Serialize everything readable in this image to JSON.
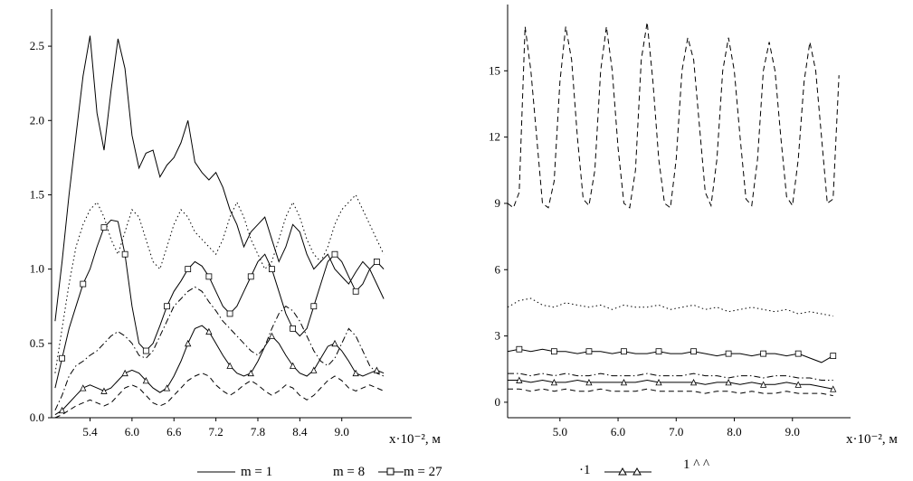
{
  "chart_data": [
    {
      "type": "line",
      "xlabel": "x·10⁻², м",
      "ylabel": "",
      "xticks": [
        "5.4",
        "6.0",
        "6.6",
        "7.2",
        "7.8",
        "8.4",
        "9.0"
      ],
      "yticks": [
        "0.0",
        "0.5",
        "1.0",
        "1.5",
        "2.0",
        "2.5"
      ],
      "xlim": [
        4.85,
        10.0
      ],
      "ylim": [
        0.0,
        2.75
      ],
      "series": [
        {
          "style": "solid",
          "x": [
            4.9,
            5.0,
            5.1,
            5.2,
            5.3,
            5.4,
            5.5,
            5.6,
            5.7,
            5.8,
            5.9,
            6.0,
            6.1,
            6.2,
            6.3,
            6.4,
            6.5,
            6.6,
            6.7,
            6.8,
            6.9,
            7.0,
            7.1,
            7.2,
            7.3,
            7.4,
            7.5,
            7.6,
            7.7,
            7.8,
            7.9,
            8.0,
            8.1,
            8.2,
            8.3,
            8.4,
            8.5,
            8.6,
            8.7,
            8.8,
            8.9,
            9.0,
            9.1,
            9.2,
            9.3,
            9.4,
            9.5,
            9.6
          ],
          "y": [
            0.65,
            1.05,
            1.5,
            1.9,
            2.3,
            2.57,
            2.05,
            1.8,
            2.2,
            2.55,
            2.35,
            1.9,
            1.68,
            1.78,
            1.8,
            1.62,
            1.7,
            1.75,
            1.85,
            2.0,
            1.72,
            1.65,
            1.6,
            1.65,
            1.55,
            1.4,
            1.3,
            1.15,
            1.25,
            1.3,
            1.35,
            1.2,
            1.05,
            1.15,
            1.3,
            1.25,
            1.1,
            1.0,
            1.05,
            1.1,
            1.0,
            0.95,
            0.9,
            0.98,
            1.05,
            1.0,
            0.9,
            0.8
          ]
        },
        {
          "style": "dotted",
          "x": [
            4.9,
            5.0,
            5.1,
            5.2,
            5.3,
            5.4,
            5.5,
            5.6,
            5.7,
            5.8,
            5.9,
            6.0,
            6.1,
            6.2,
            6.3,
            6.4,
            6.5,
            6.6,
            6.7,
            6.8,
            6.9,
            7.0,
            7.1,
            7.2,
            7.3,
            7.4,
            7.5,
            7.6,
            7.7,
            7.8,
            7.9,
            8.0,
            8.1,
            8.2,
            8.3,
            8.4,
            8.5,
            8.6,
            8.7,
            8.8,
            8.9,
            9.0,
            9.1,
            9.2,
            9.3,
            9.4,
            9.5,
            9.6
          ],
          "y": [
            0.3,
            0.6,
            0.9,
            1.15,
            1.3,
            1.4,
            1.45,
            1.35,
            1.2,
            1.1,
            1.25,
            1.4,
            1.35,
            1.2,
            1.05,
            1.0,
            1.15,
            1.3,
            1.4,
            1.35,
            1.25,
            1.2,
            1.15,
            1.1,
            1.2,
            1.35,
            1.45,
            1.35,
            1.2,
            1.1,
            1.0,
            1.05,
            1.2,
            1.35,
            1.45,
            1.35,
            1.2,
            1.1,
            1.05,
            1.15,
            1.3,
            1.4,
            1.45,
            1.5,
            1.4,
            1.3,
            1.2,
            1.1
          ]
        },
        {
          "style": "square-marker",
          "x": [
            4.9,
            5.0,
            5.1,
            5.2,
            5.3,
            5.4,
            5.5,
            5.6,
            5.7,
            5.8,
            5.9,
            6.0,
            6.1,
            6.2,
            6.3,
            6.4,
            6.5,
            6.6,
            6.7,
            6.8,
            6.9,
            7.0,
            7.1,
            7.2,
            7.3,
            7.4,
            7.5,
            7.6,
            7.7,
            7.8,
            7.9,
            8.0,
            8.1,
            8.2,
            8.3,
            8.4,
            8.5,
            8.6,
            8.7,
            8.8,
            8.9,
            9.0,
            9.1,
            9.2,
            9.3,
            9.4,
            9.5,
            9.6
          ],
          "y": [
            0.2,
            0.4,
            0.6,
            0.75,
            0.9,
            1.0,
            1.15,
            1.28,
            1.33,
            1.32,
            1.1,
            0.75,
            0.5,
            0.45,
            0.5,
            0.62,
            0.75,
            0.85,
            0.92,
            1.0,
            1.05,
            1.02,
            0.95,
            0.85,
            0.75,
            0.7,
            0.75,
            0.85,
            0.95,
            1.05,
            1.1,
            1.0,
            0.85,
            0.7,
            0.6,
            0.55,
            0.6,
            0.75,
            0.9,
            1.05,
            1.1,
            1.05,
            0.95,
            0.85,
            0.9,
            1.0,
            1.05,
            1.0
          ]
        },
        {
          "style": "dash-dot",
          "x": [
            4.9,
            5.0,
            5.1,
            5.2,
            5.3,
            5.4,
            5.5,
            5.6,
            5.7,
            5.8,
            5.9,
            6.0,
            6.1,
            6.2,
            6.3,
            6.4,
            6.5,
            6.6,
            6.7,
            6.8,
            6.9,
            7.0,
            7.1,
            7.2,
            7.3,
            7.4,
            7.5,
            7.6,
            7.7,
            7.8,
            7.9,
            8.0,
            8.1,
            8.2,
            8.3,
            8.4,
            8.5,
            8.6,
            8.7,
            8.8,
            8.9,
            9.0,
            9.1,
            9.2,
            9.3,
            9.4,
            9.5,
            9.6
          ],
          "y": [
            0.05,
            0.15,
            0.28,
            0.35,
            0.38,
            0.42,
            0.45,
            0.5,
            0.55,
            0.58,
            0.55,
            0.5,
            0.42,
            0.4,
            0.45,
            0.55,
            0.65,
            0.75,
            0.8,
            0.85,
            0.88,
            0.85,
            0.78,
            0.72,
            0.65,
            0.6,
            0.55,
            0.5,
            0.45,
            0.42,
            0.48,
            0.6,
            0.7,
            0.75,
            0.72,
            0.65,
            0.55,
            0.45,
            0.38,
            0.35,
            0.4,
            0.5,
            0.6,
            0.55,
            0.45,
            0.35,
            0.3,
            0.28
          ]
        },
        {
          "style": "triangle-marker",
          "x": [
            4.9,
            5.0,
            5.1,
            5.2,
            5.3,
            5.4,
            5.5,
            5.6,
            5.7,
            5.8,
            5.9,
            6.0,
            6.1,
            6.2,
            6.3,
            6.4,
            6.5,
            6.6,
            6.7,
            6.8,
            6.9,
            7.0,
            7.1,
            7.2,
            7.3,
            7.4,
            7.5,
            7.6,
            7.7,
            7.8,
            7.9,
            8.0,
            8.1,
            8.2,
            8.3,
            8.4,
            8.5,
            8.6,
            8.7,
            8.8,
            8.9,
            9.0,
            9.1,
            9.2,
            9.3,
            9.4,
            9.5,
            9.6
          ],
          "y": [
            0.02,
            0.05,
            0.1,
            0.15,
            0.2,
            0.22,
            0.2,
            0.18,
            0.2,
            0.25,
            0.3,
            0.32,
            0.3,
            0.25,
            0.2,
            0.17,
            0.2,
            0.28,
            0.38,
            0.5,
            0.6,
            0.62,
            0.58,
            0.5,
            0.42,
            0.35,
            0.3,
            0.28,
            0.3,
            0.38,
            0.48,
            0.55,
            0.5,
            0.42,
            0.35,
            0.3,
            0.28,
            0.32,
            0.4,
            0.48,
            0.5,
            0.45,
            0.38,
            0.3,
            0.28,
            0.3,
            0.32,
            0.3
          ]
        },
        {
          "style": "dashed",
          "x": [
            4.9,
            5.0,
            5.1,
            5.2,
            5.3,
            5.4,
            5.5,
            5.6,
            5.7,
            5.8,
            5.9,
            6.0,
            6.1,
            6.2,
            6.3,
            6.4,
            6.5,
            6.6,
            6.7,
            6.8,
            6.9,
            7.0,
            7.1,
            7.2,
            7.3,
            7.4,
            7.5,
            7.6,
            7.7,
            7.8,
            7.9,
            8.0,
            8.1,
            8.2,
            8.3,
            8.4,
            8.5,
            8.6,
            8.7,
            8.8,
            8.9,
            9.0,
            9.1,
            9.2,
            9.3,
            9.4,
            9.5,
            9.6
          ],
          "y": [
            0.0,
            0.02,
            0.05,
            0.08,
            0.1,
            0.12,
            0.1,
            0.08,
            0.1,
            0.15,
            0.2,
            0.22,
            0.2,
            0.15,
            0.1,
            0.08,
            0.1,
            0.15,
            0.2,
            0.25,
            0.28,
            0.3,
            0.28,
            0.22,
            0.18,
            0.15,
            0.18,
            0.22,
            0.25,
            0.22,
            0.18,
            0.15,
            0.18,
            0.22,
            0.2,
            0.15,
            0.12,
            0.15,
            0.2,
            0.25,
            0.28,
            0.25,
            0.2,
            0.18,
            0.2,
            0.22,
            0.2,
            0.18
          ]
        }
      ]
    },
    {
      "type": "line",
      "xlabel": "x·10⁻², м",
      "ylabel": "",
      "xticks": [
        "5.0",
        "6.0",
        "7.0",
        "8.0",
        "9.0"
      ],
      "yticks": [
        "0",
        "3",
        "6",
        "9",
        "12",
        "15"
      ],
      "xlim": [
        4.1,
        10.0
      ],
      "ylim": [
        -0.7,
        18.0
      ],
      "series": [
        {
          "style": "dashed",
          "x": [
            4.1,
            4.2,
            4.3,
            4.4,
            4.5,
            4.6,
            4.7,
            4.8,
            4.9,
            5.0,
            5.1,
            5.2,
            5.3,
            5.4,
            5.5,
            5.6,
            5.7,
            5.8,
            5.9,
            6.0,
            6.1,
            6.2,
            6.3,
            6.4,
            6.5,
            6.6,
            6.7,
            6.8,
            6.9,
            7.0,
            7.1,
            7.2,
            7.3,
            7.4,
            7.5,
            7.6,
            7.7,
            7.8,
            7.9,
            8.0,
            8.1,
            8.2,
            8.3,
            8.4,
            8.5,
            8.6,
            8.7,
            8.8,
            8.9,
            9.0,
            9.1,
            9.2,
            9.3,
            9.4,
            9.5,
            9.6,
            9.7,
            9.8
          ],
          "y": [
            9.0,
            8.8,
            9.5,
            17.0,
            15.0,
            12.0,
            9.0,
            8.8,
            10.0,
            14.5,
            17.0,
            15.5,
            12.0,
            9.2,
            8.9,
            10.5,
            15.0,
            17.0,
            15.0,
            11.5,
            9.0,
            8.8,
            10.5,
            15.5,
            17.2,
            14.5,
            11.0,
            9.0,
            8.8,
            11.0,
            15.0,
            16.5,
            15.5,
            12.5,
            9.5,
            8.9,
            11.0,
            15.0,
            16.5,
            15.0,
            12.0,
            9.2,
            8.9,
            11.0,
            15.0,
            16.3,
            15.0,
            12.0,
            9.3,
            8.9,
            11.0,
            14.5,
            16.3,
            15.0,
            12.0,
            9.0,
            9.2,
            14.8
          ]
        },
        {
          "style": "dotted",
          "x": [
            4.1,
            4.3,
            4.5,
            4.7,
            4.9,
            5.1,
            5.3,
            5.5,
            5.7,
            5.9,
            6.1,
            6.3,
            6.5,
            6.7,
            6.9,
            7.1,
            7.3,
            7.5,
            7.7,
            7.9,
            8.1,
            8.3,
            8.5,
            8.7,
            8.9,
            9.1,
            9.3,
            9.5,
            9.7
          ],
          "y": [
            4.3,
            4.6,
            4.7,
            4.4,
            4.3,
            4.5,
            4.4,
            4.3,
            4.4,
            4.2,
            4.4,
            4.3,
            4.3,
            4.4,
            4.2,
            4.3,
            4.4,
            4.2,
            4.3,
            4.1,
            4.2,
            4.3,
            4.2,
            4.1,
            4.2,
            4.0,
            4.1,
            4.0,
            3.9
          ]
        },
        {
          "style": "square-marker",
          "x": [
            4.1,
            4.3,
            4.5,
            4.7,
            4.9,
            5.1,
            5.3,
            5.5,
            5.7,
            5.9,
            6.1,
            6.3,
            6.5,
            6.7,
            6.9,
            7.1,
            7.3,
            7.5,
            7.7,
            7.9,
            8.1,
            8.3,
            8.5,
            8.7,
            8.9,
            9.1,
            9.3,
            9.5,
            9.7
          ],
          "y": [
            2.3,
            2.4,
            2.3,
            2.4,
            2.3,
            2.3,
            2.2,
            2.3,
            2.3,
            2.2,
            2.3,
            2.2,
            2.2,
            2.3,
            2.2,
            2.2,
            2.3,
            2.2,
            2.1,
            2.2,
            2.2,
            2.1,
            2.2,
            2.2,
            2.1,
            2.2,
            2.0,
            1.8,
            2.1
          ]
        },
        {
          "style": "dash-dot",
          "x": [
            4.1,
            4.3,
            4.5,
            4.7,
            4.9,
            5.1,
            5.3,
            5.5,
            5.7,
            5.9,
            6.1,
            6.3,
            6.5,
            6.7,
            6.9,
            7.1,
            7.3,
            7.5,
            7.7,
            7.9,
            8.1,
            8.3,
            8.5,
            8.7,
            8.9,
            9.1,
            9.3,
            9.5,
            9.7
          ],
          "y": [
            1.3,
            1.3,
            1.2,
            1.3,
            1.2,
            1.3,
            1.2,
            1.2,
            1.3,
            1.2,
            1.2,
            1.2,
            1.3,
            1.2,
            1.2,
            1.2,
            1.3,
            1.2,
            1.2,
            1.1,
            1.2,
            1.2,
            1.1,
            1.2,
            1.2,
            1.1,
            1.1,
            1.0,
            1.0
          ]
        },
        {
          "style": "triangle-marker",
          "x": [
            4.1,
            4.3,
            4.5,
            4.7,
            4.9,
            5.1,
            5.3,
            5.5,
            5.7,
            5.9,
            6.1,
            6.3,
            6.5,
            6.7,
            6.9,
            7.1,
            7.3,
            7.5,
            7.7,
            7.9,
            8.1,
            8.3,
            8.5,
            8.7,
            8.9,
            9.1,
            9.3,
            9.5,
            9.7
          ],
          "y": [
            1.0,
            1.0,
            0.9,
            1.0,
            0.9,
            0.9,
            1.0,
            0.9,
            0.9,
            0.9,
            0.9,
            0.9,
            1.0,
            0.9,
            0.9,
            0.9,
            0.9,
            0.8,
            0.9,
            0.9,
            0.8,
            0.9,
            0.8,
            0.8,
            0.9,
            0.8,
            0.8,
            0.7,
            0.6
          ]
        },
        {
          "style": "dashed",
          "x": [
            4.1,
            4.3,
            4.5,
            4.7,
            4.9,
            5.1,
            5.3,
            5.5,
            5.7,
            5.9,
            6.1,
            6.3,
            6.5,
            6.7,
            6.9,
            7.1,
            7.3,
            7.5,
            7.7,
            7.9,
            8.1,
            8.3,
            8.5,
            8.7,
            8.9,
            9.1,
            9.3,
            9.5,
            9.7
          ],
          "y": [
            0.6,
            0.6,
            0.5,
            0.6,
            0.5,
            0.6,
            0.5,
            0.5,
            0.6,
            0.5,
            0.5,
            0.5,
            0.6,
            0.5,
            0.5,
            0.5,
            0.5,
            0.4,
            0.5,
            0.5,
            0.4,
            0.5,
            0.4,
            0.4,
            0.5,
            0.4,
            0.4,
            0.4,
            0.3
          ]
        }
      ]
    }
  ],
  "legend": {
    "items": [
      {
        "style": "solid",
        "label": "m = 1"
      },
      {
        "style": "none",
        "label": "m = 8"
      },
      {
        "style": "square-marker",
        "label": "m = 27"
      },
      {
        "style": "triangle-marker",
        "label": "·1"
      },
      {
        "style": "none",
        "label": "1 ^ ^"
      }
    ]
  }
}
